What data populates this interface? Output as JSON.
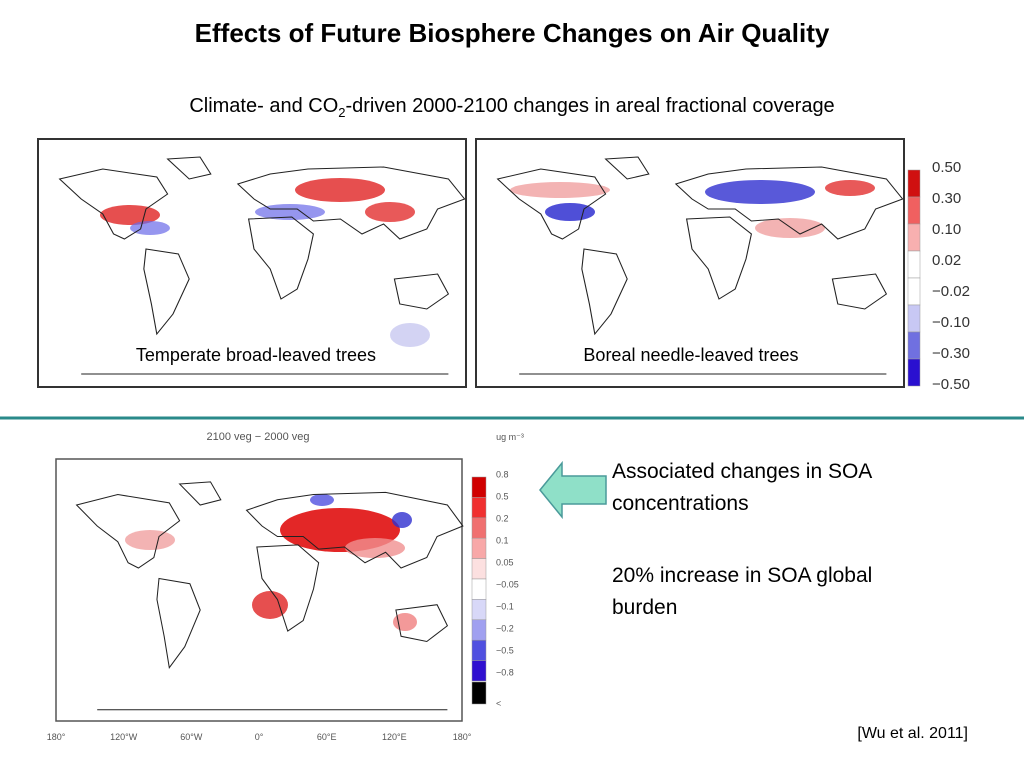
{
  "header": {
    "title": "Effects of Future Biosphere Changes on Air Quality",
    "subtitle": {
      "before": "Climate- and CO",
      "subscript": "2",
      "after": "-driven 2000-2100 changes in areal fractional coverage"
    }
  },
  "top_maps": [
    {
      "label": "Temperate broad-leaved trees"
    },
    {
      "label": "Boreal needle-leaved trees"
    }
  ],
  "top_colorbar": {
    "labels": [
      "0.50",
      "0.30",
      "0.10",
      "0.02",
      "−0.02",
      "−0.10",
      "−0.30",
      "−0.50"
    ]
  },
  "bottom_map": {
    "title": "2100 veg − 2000 veg",
    "unit": "ug m⁻³",
    "colorbar_labels": [
      "0.8",
      "0.5",
      "0.2",
      "0.1",
      "0.05",
      "−0.05",
      "−0.1",
      "−0.2",
      "−0.5",
      "−0.8",
      "<"
    ],
    "x_labels": [
      "180°",
      "120°W",
      "60°W",
      "0°",
      "60°E",
      "120°E",
      "180°"
    ]
  },
  "notes": [
    "Associated changes in SOA concentrations",
    "20% increase in SOA global burden"
  ],
  "citation": "[Wu et al. 2011]"
}
